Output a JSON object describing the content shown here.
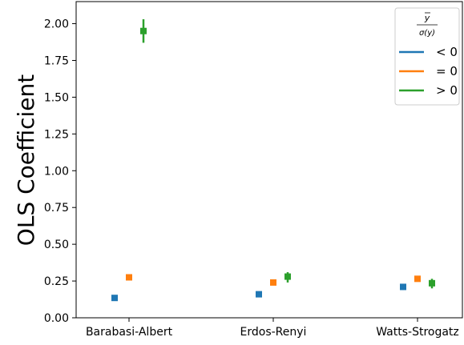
{
  "chart_data": {
    "type": "scatter",
    "categories": [
      "Barabasi-Albert",
      "Erdos-Renyi",
      "Watts-Strogatz"
    ],
    "ylabel": "OLS Coefficient",
    "xlabel": "",
    "ylim": [
      0.0,
      2.15
    ],
    "yticks": [
      "0.00",
      "0.25",
      "0.50",
      "0.75",
      "1.00",
      "1.25",
      "1.50",
      "1.75",
      "2.00"
    ],
    "grid": false,
    "legend": {
      "placement": "top-right",
      "title_numerator": "y",
      "title_denominator": "σ(y)",
      "entries": [
        "< 0",
        "= 0",
        "> 0"
      ]
    },
    "series": [
      {
        "name": "< 0",
        "color": "#1f77b4",
        "values": [
          0.135,
          0.16,
          0.21
        ],
        "err_low": [
          0.125,
          0.14,
          0.19
        ],
        "err_high": [
          0.145,
          0.18,
          0.23
        ]
      },
      {
        "name": "= 0",
        "color": "#ff7f0e",
        "values": [
          0.275,
          0.24,
          0.265
        ],
        "err_low": [
          0.26,
          0.225,
          0.25
        ],
        "err_high": [
          0.29,
          0.255,
          0.28
        ]
      },
      {
        "name": "> 0",
        "color": "#2ca02c",
        "values": [
          1.95,
          0.28,
          0.235
        ],
        "err_low": [
          1.87,
          0.24,
          0.2
        ],
        "err_high": [
          2.03,
          0.31,
          0.265
        ]
      }
    ]
  }
}
